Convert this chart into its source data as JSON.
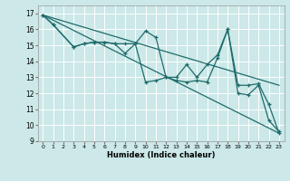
{
  "xlabel": "Humidex (Indice chaleur)",
  "bg_color": "#cce8e8",
  "grid_color": "#ffffff",
  "line_color": "#1e6b6b",
  "xlim": [
    -0.5,
    23.5
  ],
  "ylim": [
    9,
    17.5
  ],
  "yticks": [
    9,
    10,
    11,
    12,
    13,
    14,
    15,
    16,
    17
  ],
  "xticks": [
    0,
    1,
    2,
    3,
    4,
    5,
    6,
    7,
    8,
    9,
    10,
    11,
    12,
    13,
    14,
    15,
    16,
    17,
    18,
    19,
    20,
    21,
    22,
    23
  ],
  "series": [
    {
      "x": [
        0,
        23
      ],
      "y": [
        16.9,
        12.5
      ],
      "marker": null,
      "linewidth": 0.9
    },
    {
      "x": [
        0,
        23
      ],
      "y": [
        16.9,
        9.5
      ],
      "marker": null,
      "linewidth": 0.9
    },
    {
      "x": [
        0,
        1,
        3,
        4,
        5,
        6,
        7,
        8,
        9,
        10,
        11,
        12,
        13,
        14,
        15,
        16,
        17,
        18,
        19,
        20,
        21,
        22,
        23
      ],
      "y": [
        16.9,
        16.3,
        14.9,
        15.1,
        15.2,
        15.2,
        15.1,
        15.1,
        15.1,
        15.9,
        15.5,
        13.0,
        13.0,
        13.8,
        13.0,
        13.8,
        14.4,
        16.0,
        12.5,
        12.5,
        12.6,
        11.3,
        9.5
      ],
      "marker": "+",
      "linewidth": 0.9
    },
    {
      "x": [
        0,
        1,
        3,
        4,
        5,
        6,
        7,
        8,
        9,
        10,
        11,
        12,
        13,
        14,
        15,
        16,
        17,
        18,
        19,
        20,
        21,
        22,
        23
      ],
      "y": [
        16.9,
        16.3,
        14.9,
        15.1,
        15.2,
        15.2,
        15.1,
        14.5,
        15.1,
        12.7,
        12.8,
        13.0,
        12.8,
        12.7,
        12.8,
        12.7,
        14.2,
        16.0,
        12.0,
        11.9,
        12.5,
        10.3,
        9.6
      ],
      "marker": "+",
      "linewidth": 0.9
    }
  ]
}
